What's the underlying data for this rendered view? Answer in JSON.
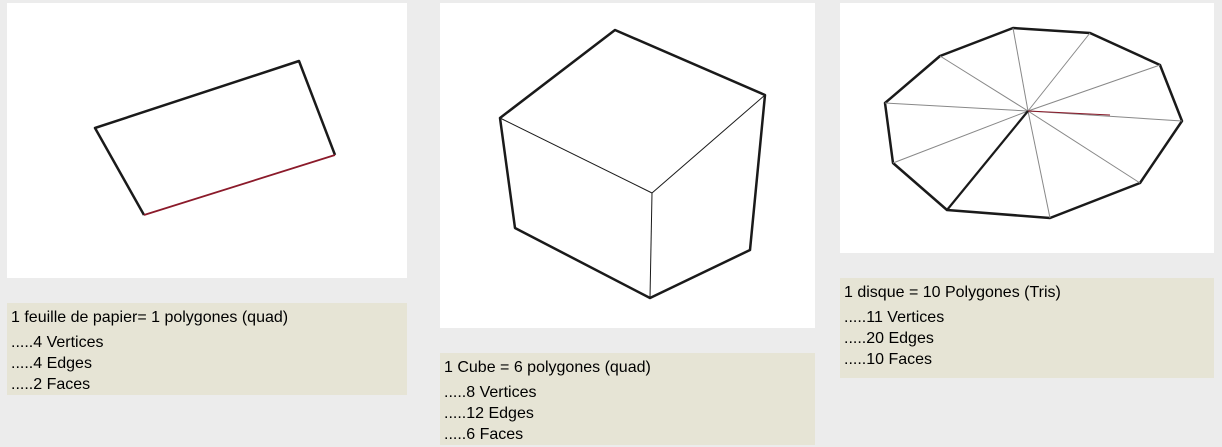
{
  "figures": [
    {
      "shape": "paper-sheet-quad",
      "title": "1 feuille de papier= 1 polygones (quad)",
      "stats": [
        ".....4 Vertices",
        ".....4 Edges",
        ".....2 Faces"
      ]
    },
    {
      "shape": "cube",
      "title": "1 Cube = 6 polygones (quad)",
      "stats": [
        ".....8 Vertices",
        ".....12 Edges",
        ".....6 Faces"
      ]
    },
    {
      "shape": "decagon-disc-tris",
      "title": "1 disque = 10 Polygones (Tris)",
      "stats": [
        ".....11 Vertices",
        ".....20 Edges",
        ".....10 Faces"
      ]
    }
  ],
  "colors": {
    "background": "#ececec",
    "panel": "#ffffff",
    "caption_bg": "#e6e4d5",
    "edge": "#1a1a1a",
    "highlight_edge": "#8b1a2a"
  }
}
